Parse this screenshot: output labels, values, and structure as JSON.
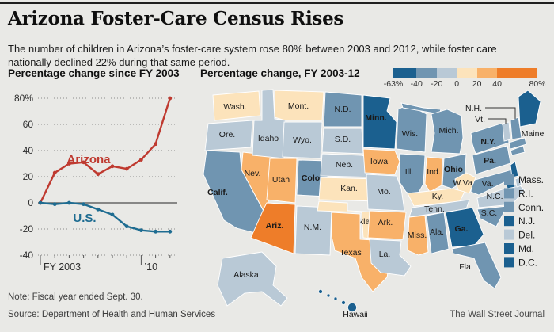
{
  "page": {
    "title": "Arizona Foster-Care Census Rises",
    "dek": "The number of children in Arizona’s foster-care system rose 80% between 2003 and 2012, while foster care nationally declined 22% during that same period.",
    "note": "Note: Fiscal year ended Sept. 30.",
    "source": "Source: Department of Health and Human Services",
    "credit": "The Wall Street Journal"
  },
  "chart_data": {
    "type": "line",
    "title": "Percentage change since FY 2003",
    "x": [
      2003,
      2004,
      2005,
      2006,
      2007,
      2008,
      2009,
      2010,
      2011,
      2012
    ],
    "x_axis": {
      "first_label": "FY 2003",
      "mid_label": "’10",
      "mid_year": 2010
    },
    "ylim": [
      -40,
      80
    ],
    "grid": "dotted-horizontal",
    "yticks": [
      {
        "v": 80,
        "label": "80%"
      },
      {
        "v": 60,
        "label": "60"
      },
      {
        "v": 40,
        "label": "40"
      },
      {
        "v": 20,
        "label": "20"
      },
      {
        "v": 0,
        "label": "0"
      },
      {
        "v": -20,
        "label": "-20"
      },
      {
        "v": -40,
        "label": "-40"
      }
    ],
    "series": [
      {
        "name": "Arizona",
        "color": "#bf3a30",
        "values": [
          0,
          23,
          30,
          31,
          22,
          28,
          26,
          33,
          45,
          80
        ]
      },
      {
        "name": "U.S.",
        "color": "#1e6c91",
        "values": [
          0,
          -1,
          0,
          -1,
          -5,
          -9,
          -18,
          -21,
          -22,
          -22
        ]
      }
    ]
  },
  "map": {
    "title": "Percentage change, FY 2003-12",
    "legend": {
      "colors": [
        "#1b608f",
        "#7095b1",
        "#b9c9d6",
        "#fce3bb",
        "#f8b169",
        "#ee7d29"
      ],
      "domain": [
        -63,
        -40,
        -20,
        0,
        20,
        40,
        80
      ],
      "tick_labels": [
        "-63%",
        "-40",
        "-20",
        "0",
        "20",
        "40",
        "80%"
      ]
    },
    "states": [
      {
        "id": "wash",
        "label": "Wash.",
        "bucket": 3
      },
      {
        "id": "ore",
        "label": "Ore.",
        "bucket": 2
      },
      {
        "id": "calif",
        "label": "Calif.",
        "bucket": 1,
        "bold": true
      },
      {
        "id": "nev",
        "label": "Nev.",
        "bucket": 4
      },
      {
        "id": "idaho",
        "label": "Idaho",
        "bucket": 2
      },
      {
        "id": "mont",
        "label": "Mont.",
        "bucket": 3
      },
      {
        "id": "wyo",
        "label": "Wyo.",
        "bucket": 2
      },
      {
        "id": "utah",
        "label": "Utah",
        "bucket": 4
      },
      {
        "id": "colo",
        "label": "Colo.",
        "bucket": 1,
        "bold": true
      },
      {
        "id": "ariz",
        "label": "Ariz.",
        "bucket": 5,
        "bold": true,
        "label_color": "#ffffff"
      },
      {
        "id": "nm",
        "label": "N.M.",
        "bucket": 2
      },
      {
        "id": "nd",
        "label": "N.D.",
        "bucket": 1
      },
      {
        "id": "sd",
        "label": "S.D.",
        "bucket": 2
      },
      {
        "id": "neb",
        "label": "Neb.",
        "bucket": 2
      },
      {
        "id": "kan",
        "label": "Kan.",
        "bucket": 3
      },
      {
        "id": "okla",
        "label": "Okla.",
        "bucket": 3
      },
      {
        "id": "texas",
        "label": "Texas",
        "bucket": 4
      },
      {
        "id": "minn",
        "label": "Minn.",
        "bucket": 0,
        "bold": true
      },
      {
        "id": "iowa",
        "label": "Iowa",
        "bucket": 4
      },
      {
        "id": "mo",
        "label": "Mo.",
        "bucket": 2
      },
      {
        "id": "ark",
        "label": "Ark.",
        "bucket": 4
      },
      {
        "id": "la",
        "label": "La.",
        "bucket": 2
      },
      {
        "id": "wis",
        "label": "Wis.",
        "bucket": 1
      },
      {
        "id": "ill",
        "label": "Ill.",
        "bucket": 1
      },
      {
        "id": "ind",
        "label": "Ind.",
        "bucket": 4
      },
      {
        "id": "mich_up",
        "label": "",
        "bucket": 1
      },
      {
        "id": "mich",
        "label": "Mich.",
        "bucket": 1
      },
      {
        "id": "ohio",
        "label": "Ohio",
        "bucket": 1,
        "bold": true
      },
      {
        "id": "va",
        "label": "Va.",
        "bucket": 1
      },
      {
        "id": "wva",
        "label": "W.Va.",
        "bucket": 3
      },
      {
        "id": "ky",
        "label": "Ky.",
        "bucket": 3
      },
      {
        "id": "tenn",
        "label": "Tenn.",
        "bucket": 2
      },
      {
        "id": "nc",
        "label": "N.C.",
        "bucket": 2
      },
      {
        "id": "sc",
        "label": "S.C.",
        "bucket": 1
      },
      {
        "id": "ga",
        "label": "Ga.",
        "bucket": 0,
        "bold": true,
        "label_color": "#ffffff"
      },
      {
        "id": "ala",
        "label": "Ala.",
        "bucket": 1
      },
      {
        "id": "miss",
        "label": "Miss.",
        "bucket": 4
      },
      {
        "id": "fla",
        "label": "Fla.",
        "bucket": 1
      },
      {
        "id": "ny",
        "label": "N.Y.",
        "bucket": 1,
        "bold": true
      },
      {
        "id": "pa",
        "label": "Pa.",
        "bucket": 1,
        "bold": true
      },
      {
        "id": "nj",
        "label": "",
        "bucket": 0
      },
      {
        "id": "del",
        "label": "",
        "bucket": 2
      },
      {
        "id": "md",
        "label": "",
        "bucket": 0
      },
      {
        "id": "mass_sl",
        "label": "",
        "bucket": 1
      },
      {
        "id": "conn_sl",
        "label": "",
        "bucket": 1
      },
      {
        "id": "vt",
        "label": "Vt.",
        "bucket": 2
      },
      {
        "id": "nh",
        "label": "N.H.",
        "bucket": 1
      },
      {
        "id": "maine",
        "label": "Maine",
        "bucket": 0
      },
      {
        "id": "alaska",
        "label": "Alaska",
        "bucket": 2
      },
      {
        "id": "hawaii",
        "label": "Hawaii",
        "bucket": 0
      }
    ],
    "small_states": [
      {
        "label": "Mass.",
        "bucket": 1
      },
      {
        "label": "R.I.",
        "bucket": 1
      },
      {
        "label": "Conn.",
        "bucket": 1
      },
      {
        "label": "N.J.",
        "bucket": 0
      },
      {
        "label": "Del.",
        "bucket": 2
      },
      {
        "label": "Md.",
        "bucket": 0
      },
      {
        "label": "D.C.",
        "bucket": 0
      }
    ]
  }
}
